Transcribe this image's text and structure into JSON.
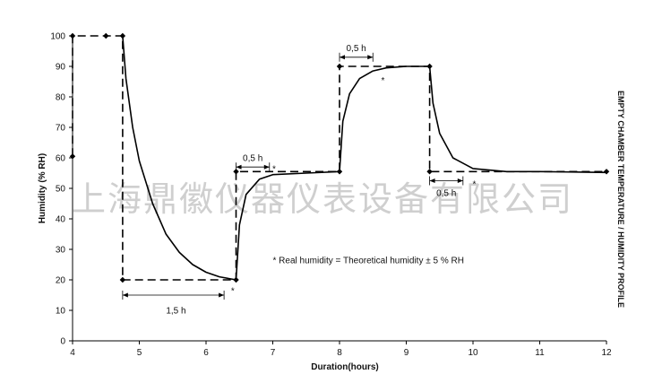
{
  "chart_data": {
    "type": "line",
    "xlabel": "Duration(hours)",
    "ylabel": "Humidity (% RH)",
    "side_title": "EMPTY CHAMBER TEMPERATURE / HUMIDITY PROFILE",
    "xlim": [
      4,
      12
    ],
    "ylim": [
      0,
      100
    ],
    "x_ticks": [
      4,
      5,
      6,
      7,
      8,
      9,
      10,
      11,
      12
    ],
    "y_ticks": [
      0,
      10,
      20,
      30,
      40,
      50,
      60,
      70,
      80,
      90,
      100
    ],
    "grid": false,
    "series": [
      {
        "style": "dashed",
        "x": [
          4,
          4,
          4.5,
          4.75,
          4.75,
          6.45,
          6.45,
          8,
          8,
          9.35,
          9.35,
          12
        ],
        "y": [
          60.5,
          100,
          100,
          100,
          20,
          20,
          55.5,
          55.5,
          90,
          90,
          55.5,
          55.5
        ]
      },
      {
        "style": "solid",
        "x": [
          4.75,
          4.8,
          4.9,
          5.0,
          5.2,
          5.4,
          5.6,
          5.8,
          6.0,
          6.2,
          6.45,
          6.5,
          6.6,
          6.8,
          7.0,
          7.5,
          8.0,
          8.05,
          8.15,
          8.3,
          8.5,
          8.7,
          9.0,
          9.35,
          9.4,
          9.5,
          9.7,
          10.0,
          10.5,
          11.0,
          12.0
        ],
        "y": [
          100,
          86,
          70,
          59,
          45,
          35,
          29,
          25,
          22.5,
          21,
          20,
          38,
          48,
          53,
          54.5,
          55,
          55.5,
          72,
          81,
          86,
          88.5,
          89.5,
          90,
          90,
          78,
          68,
          60,
          56.5,
          55.5,
          55.5,
          55.2
        ]
      }
    ],
    "markers": {
      "x": [
        4,
        4,
        4.5,
        4.75,
        4.75,
        6.45,
        6.45,
        8,
        8,
        9.35,
        9.35,
        12
      ],
      "y": [
        60.5,
        100,
        100,
        100,
        20,
        20,
        55.5,
        55.5,
        90,
        90,
        55.5,
        55.5
      ]
    },
    "annotations": [
      {
        "label": "1,5 h",
        "x_start": 4.75,
        "x_end": 6.27,
        "y": 15,
        "label_x": 5.55,
        "label_y": 10,
        "star": "*",
        "star_x": 6.4,
        "star_y": 16.5
      },
      {
        "label": "0,5 h",
        "x_start": 6.45,
        "x_end": 6.95,
        "y": 57,
        "label_x": 6.7,
        "label_y": 60,
        "star": "*",
        "star_x": 7.02,
        "star_y": 56.5
      },
      {
        "label": "0,5 h",
        "x_start": 8.0,
        "x_end": 8.5,
        "y": 93,
        "label_x": 8.25,
        "label_y": 96,
        "star": "*",
        "star_x": 8.65,
        "star_y": 85.5
      },
      {
        "label": "0,5 h",
        "x_start": 9.35,
        "x_end": 9.85,
        "y": 52.5,
        "label_x": 9.6,
        "label_y": 48.5,
        "star": "*",
        "star_x": 10.02,
        "star_y": 51.5
      }
    ],
    "note": "* Real humidity = Theoretical humidity ± 5 % RH",
    "note_x": 7.0,
    "note_y": 25.5,
    "watermark": "上海鼎徽仪器仪表设备有限公司"
  }
}
